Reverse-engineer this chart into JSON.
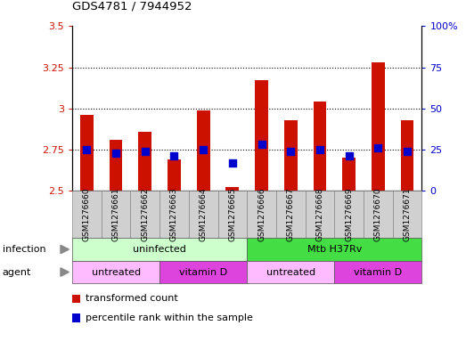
{
  "title": "GDS4781 / 7944952",
  "samples": [
    "GSM1276660",
    "GSM1276661",
    "GSM1276662",
    "GSM1276663",
    "GSM1276664",
    "GSM1276665",
    "GSM1276666",
    "GSM1276667",
    "GSM1276668",
    "GSM1276669",
    "GSM1276670",
    "GSM1276671"
  ],
  "transformed_count": [
    2.96,
    2.81,
    2.86,
    2.69,
    2.99,
    2.52,
    3.17,
    2.93,
    3.04,
    2.7,
    3.28,
    2.93
  ],
  "percentile_rank": [
    25,
    23,
    24,
    21,
    25,
    17,
    28,
    24,
    25,
    21,
    26,
    24
  ],
  "bar_color": "#cc1100",
  "dot_color": "#0000cc",
  "ylim_left": [
    2.5,
    3.5
  ],
  "ylim_right": [
    0,
    100
  ],
  "yticks_left": [
    2.5,
    2.75,
    3.0,
    3.25,
    3.5
  ],
  "yticks_right": [
    0,
    25,
    50,
    75,
    100
  ],
  "ytick_labels_left": [
    "2.5",
    "2.75",
    "3",
    "3.25",
    "3.5"
  ],
  "ytick_labels_right": [
    "0",
    "25",
    "50",
    "75",
    "100%"
  ],
  "dotted_gridlines": [
    2.75,
    3.0,
    3.25
  ],
  "infection_labels": [
    {
      "text": "uninfected",
      "start": 0,
      "end": 5,
      "color": "#ccffcc"
    },
    {
      "text": "Mtb H37Rv",
      "start": 6,
      "end": 11,
      "color": "#44dd44"
    }
  ],
  "agent_labels": [
    {
      "text": "untreated",
      "start": 0,
      "end": 2,
      "color": "#ffbbff"
    },
    {
      "text": "vitamin D",
      "start": 3,
      "end": 5,
      "color": "#dd44dd"
    },
    {
      "text": "untreated",
      "start": 6,
      "end": 8,
      "color": "#ffbbff"
    },
    {
      "text": "vitamin D",
      "start": 9,
      "end": 11,
      "color": "#dd44dd"
    }
  ],
  "legend_items": [
    {
      "label": "transformed count",
      "color": "#cc1100"
    },
    {
      "label": "percentile rank within the sample",
      "color": "#0000cc"
    }
  ],
  "left_label_color": "#cc1100",
  "right_label_color": "#0000cc",
  "infection_row_label": "infection",
  "agent_row_label": "agent",
  "bar_bottom": 2.5,
  "dot_size": 35,
  "bar_width": 0.45
}
